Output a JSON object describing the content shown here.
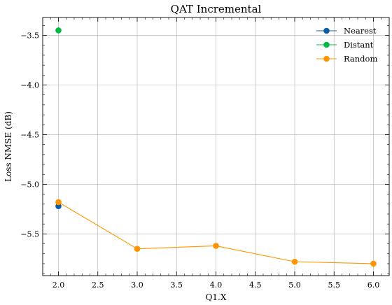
{
  "chart_data": {
    "type": "line",
    "title": "QAT Incremental",
    "xlabel": "Q1.X",
    "ylabel": "Loss NMSE (dB)",
    "xlim": [
      1.8,
      6.2
    ],
    "ylim": [
      -5.92,
      -3.32
    ],
    "xticks": [
      2.0,
      2.5,
      3.0,
      3.5,
      4.0,
      4.5,
      5.0,
      5.5,
      6.0
    ],
    "xtick_labels": [
      "2.0",
      "2.5",
      "3.0",
      "3.5",
      "4.0",
      "4.5",
      "5.0",
      "5.5",
      "6.0"
    ],
    "yticks": [
      -3.5,
      -4.0,
      -4.5,
      -5.0,
      -5.5
    ],
    "ytick_labels": [
      "−3.5",
      "−4.0",
      "−4.5",
      "−5.0",
      "−5.5"
    ],
    "grid": true,
    "legend_position": "top-right",
    "series": [
      {
        "name": "Nearest",
        "color": "#0C5DA5",
        "x": [
          2
        ],
        "y": [
          -5.22
        ]
      },
      {
        "name": "Distant",
        "color": "#00B945",
        "x": [
          2
        ],
        "y": [
          -3.45
        ]
      },
      {
        "name": "Random",
        "color": "#FF9500",
        "x": [
          2,
          3,
          4,
          5,
          6
        ],
        "y": [
          -5.18,
          -5.65,
          -5.62,
          -5.78,
          -5.8
        ]
      }
    ]
  }
}
